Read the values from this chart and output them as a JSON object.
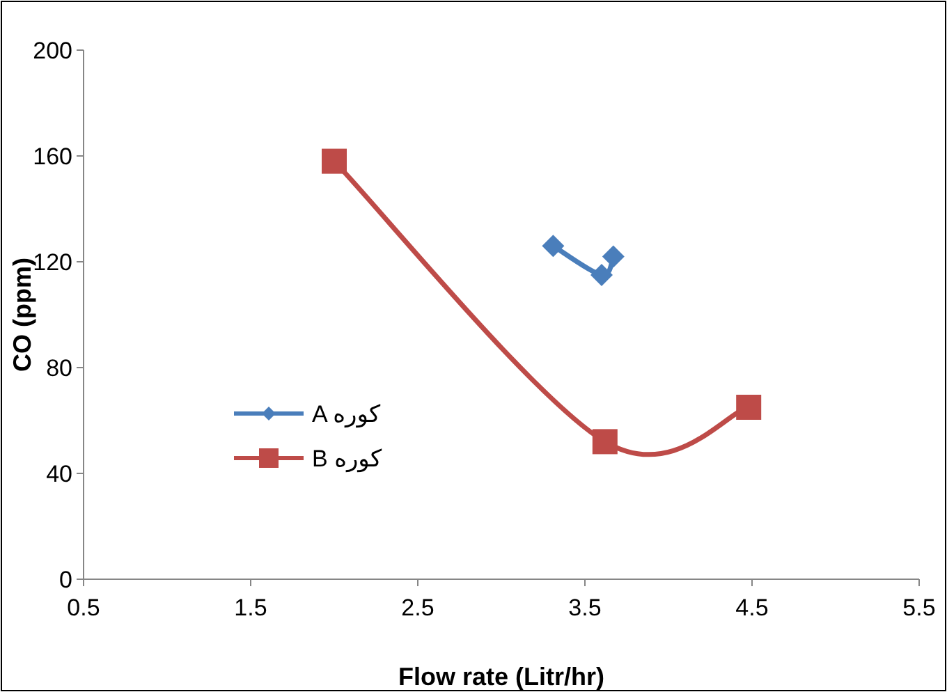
{
  "chart_data": {
    "type": "line",
    "xlabel": "Flow rate (Litr/hr)",
    "ylabel": "CO (ppm)",
    "xlim": [
      0.5,
      5.5
    ],
    "xticks": [
      0.5,
      1.5,
      2.5,
      3.5,
      4.5,
      5.5
    ],
    "ylim": [
      0,
      200
    ],
    "yticks": [
      0,
      40,
      80,
      120,
      160,
      200
    ],
    "grid": false,
    "legend": "left",
    "series": [
      {
        "name": "A کوره",
        "color": "#4a7ebb",
        "marker": "diamond",
        "x": [
          3.31,
          3.6,
          3.67
        ],
        "values": [
          126,
          115,
          122
        ]
      },
      {
        "name": "B کوره",
        "color": "#be4b48",
        "marker": "square",
        "x": [
          2.0,
          3.62,
          4.48
        ],
        "values": [
          158,
          52,
          65
        ]
      }
    ]
  }
}
